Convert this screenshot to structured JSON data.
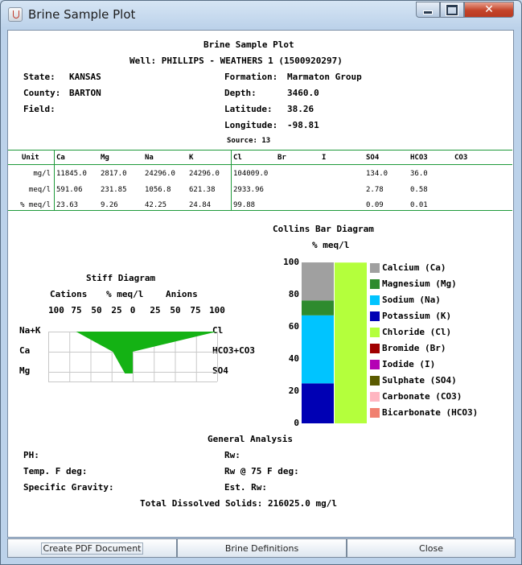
{
  "window": {
    "title": "Brine Sample Plot"
  },
  "header": {
    "title": "Brine Sample Plot",
    "well": "Well: PHILLIPS - WEATHERS 1 (1500920297)",
    "state_label": "State:",
    "state": "KANSAS",
    "county_label": "County:",
    "county": "BARTON",
    "field_label": "Field:",
    "field": "",
    "formation_label": "Formation:",
    "formation": "Marmaton Group",
    "depth_label": "Depth:",
    "depth": "3460.0",
    "latitude_label": "Latitude:",
    "latitude": "38.26",
    "longitude_label": "Longitude:",
    "longitude": "-98.81",
    "source": "Source: 13"
  },
  "table": {
    "unit_header": "Unit",
    "cation_headers": [
      "Ca",
      "Mg",
      "Na",
      "K"
    ],
    "anion_headers": [
      "Cl",
      "Br",
      "I",
      "SO4",
      "HCO3",
      "CO3"
    ],
    "rows": [
      {
        "unit": "mg/l",
        "ca": "11845.0",
        "mg": "2817.0",
        "na": "24296.0",
        "k": "24296.0",
        "cl": "104009.0",
        "br": "",
        "i": "",
        "so4": "134.0",
        "hco3": "36.0",
        "co3": ""
      },
      {
        "unit": "meq/l",
        "ca": "591.06",
        "mg": "231.85",
        "na": "1056.8",
        "k": "621.38",
        "cl": "2933.96",
        "br": "",
        "i": "",
        "so4": "2.78",
        "hco3": "0.58",
        "co3": ""
      },
      {
        "unit": "% meq/l",
        "ca": "23.63",
        "mg": "9.26",
        "na": "42.25",
        "k": "24.84",
        "cl": "99.88",
        "br": "",
        "i": "",
        "so4": "0.09",
        "hco3": "0.01",
        "co3": ""
      }
    ]
  },
  "stiff": {
    "title": "Stiff Diagram",
    "cations_label": "Cations",
    "unit_label": "% meq/l",
    "anions_label": "Anions",
    "ticks": [
      "100",
      "75",
      "50",
      "25",
      "0",
      "25",
      "50",
      "75",
      "100"
    ],
    "left_labels": [
      "Na+K",
      "Ca",
      "Mg"
    ],
    "right_labels": [
      "Cl",
      "HCO3+CO3",
      "SO4"
    ],
    "fill_color": "#14b214",
    "values": {
      "na_k": 67.09,
      "ca": 23.63,
      "mg": 9.26,
      "cl": 99.88,
      "hco3_co3": 0.01,
      "so4": 0.09
    }
  },
  "collins": {
    "title": "Collins Bar Diagram",
    "unit_label": "% meq/l",
    "y_ticks": [
      "100",
      "80",
      "60",
      "40",
      "20",
      "0"
    ],
    "cation_bar": [
      {
        "name": "Potassium",
        "value": 24.84,
        "color": "#0000b4"
      },
      {
        "name": "Sodium",
        "value": 42.25,
        "color": "#00c4ff"
      },
      {
        "name": "Magnesium",
        "value": 9.26,
        "color": "#2e8b2e"
      },
      {
        "name": "Calcium",
        "value": 23.63,
        "color": "#a0a0a0"
      }
    ],
    "anion_bar": [
      {
        "name": "Chloride",
        "value": 99.88,
        "color": "#b4ff3c"
      }
    ],
    "legend": [
      {
        "label": "Calcium (Ca)",
        "color": "#a0a0a0"
      },
      {
        "label": "Magnesium (Mg)",
        "color": "#2e8b2e"
      },
      {
        "label": "Sodium (Na)",
        "color": "#00c4ff"
      },
      {
        "label": "Potassium (K)",
        "color": "#0000b4"
      },
      {
        "label": "Chloride (Cl)",
        "color": "#b4ff3c"
      },
      {
        "label": "Bromide (Br)",
        "color": "#a00000"
      },
      {
        "label": "Iodide (I)",
        "color": "#b400b4"
      },
      {
        "label": "Sulphate (SO4)",
        "color": "#5a5a00"
      },
      {
        "label": "Carbonate (CO3)",
        "color": "#ffb6c1"
      },
      {
        "label": "Bicarbonate (HCO3)",
        "color": "#f08070"
      }
    ]
  },
  "general": {
    "title": "General Analysis",
    "ph_label": "PH:",
    "ph": "",
    "temp_label": "Temp. F deg:",
    "temp": "",
    "sg_label": "Specific Gravity:",
    "sg": "",
    "rw_label": "Rw:",
    "rw": "",
    "rw75_label": "Rw @ 75 F deg:",
    "rw75": "",
    "est_rw_label": "Est. Rw:",
    "est_rw": "",
    "tds": "Total Dissolved Solids: 216025.0 mg/l"
  },
  "buttons": {
    "pdf": "Create PDF Document",
    "definitions": "Brine Definitions",
    "close": "Close"
  }
}
